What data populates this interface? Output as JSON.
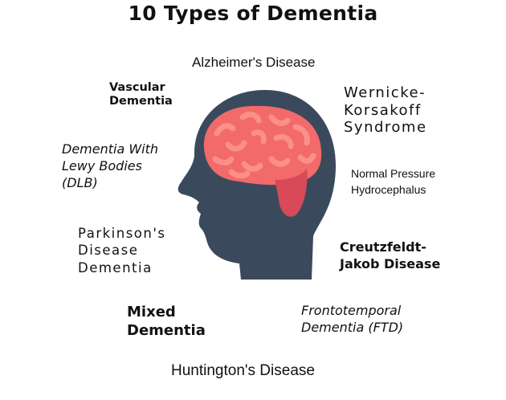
{
  "title": "10 Types of Dementia",
  "colors": {
    "head": "#3a4a5c",
    "brain": "#f26a6a",
    "brain_fold": "#fb8f8a",
    "brain_stem": "#d84a57"
  },
  "illustration": {
    "icon": "human-head-brain-icon"
  },
  "labels": {
    "alzheimers": "Alzheimer's Disease",
    "vascular": [
      "Vascular",
      "Dementia"
    ],
    "wernicke": [
      "Wernicke-",
      "Korsakoff",
      "Syndrome"
    ],
    "lewy": [
      "Dementia With",
      "Lewy Bodies",
      "(DLB)"
    ],
    "nph": [
      "Normal Pressure",
      "Hydrocephalus"
    ],
    "parkinsons": [
      "Parkinson's",
      "Disease",
      "Dementia"
    ],
    "cjd": [
      "Creutzfeldt-",
      "Jakob Disease"
    ],
    "mixed": [
      "Mixed",
      "Dementia"
    ],
    "ftd": [
      "Frontotemporal",
      "Dementia (FTD)"
    ],
    "huntingtons": "Huntington's Disease"
  }
}
